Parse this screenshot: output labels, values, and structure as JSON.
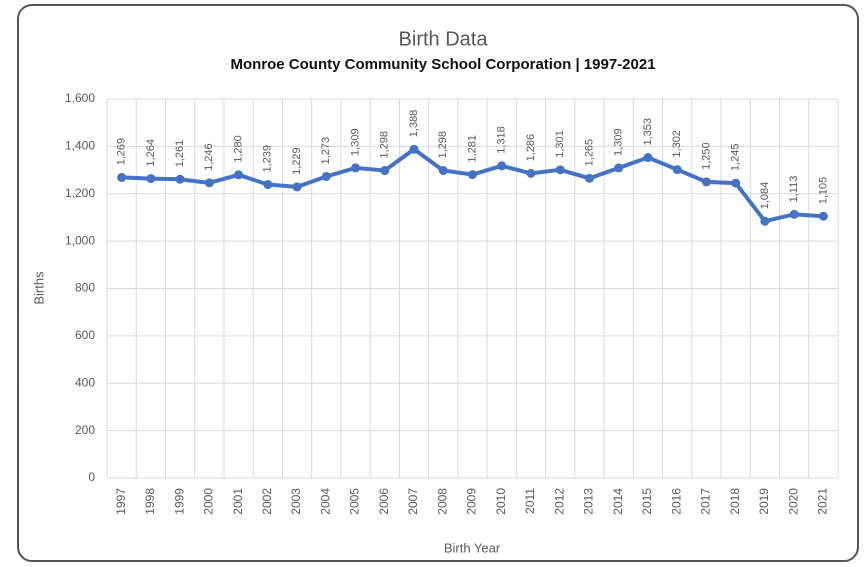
{
  "chart_data": {
    "type": "line",
    "title": "Birth Data",
    "subtitle": "Monroe County Community School Corporation | 1997-2021",
    "y_label": "Births",
    "x_label": "Birth Year",
    "categories": [
      "1997",
      "1998",
      "1999",
      "2000",
      "2001",
      "2002",
      "2003",
      "2004",
      "2005",
      "2006",
      "2007",
      "2008",
      "2009",
      "2010",
      "2011",
      "2012",
      "2013",
      "2014",
      "2015",
      "2016",
      "2017",
      "2018",
      "2019",
      "2020",
      "2021"
    ],
    "values": [
      1269,
      1264,
      1261,
      1246,
      1280,
      1239,
      1229,
      1273,
      1309,
      1298,
      1388,
      1298,
      1281,
      1318,
      1286,
      1301,
      1265,
      1309,
      1353,
      1302,
      1250,
      1245,
      1084,
      1113,
      1105
    ],
    "value_labels": [
      "1,269",
      "1,264",
      "1,261",
      "1,246",
      "1,280",
      "1,239",
      "1,229",
      "1,273",
      "1,309",
      "1,298",
      "1,388",
      "1,298",
      "1,281",
      "1,318",
      "1,286",
      "1,301",
      "1,265",
      "1,309",
      "1,353",
      "1,302",
      "1,250",
      "1,245",
      "1,084",
      "1,113",
      "1,105"
    ],
    "color": "#4472c4",
    "ylim": [
      0,
      1600
    ],
    "yticks": [
      0,
      200,
      400,
      600,
      800,
      {
        "value": 1000,
        "label": "1,000"
      },
      {
        "value": 1200,
        "label": "1,200"
      },
      {
        "value": 1400,
        "label": "1,400"
      },
      {
        "value": 1600,
        "label": "1,600"
      }
    ],
    "grid": true
  }
}
